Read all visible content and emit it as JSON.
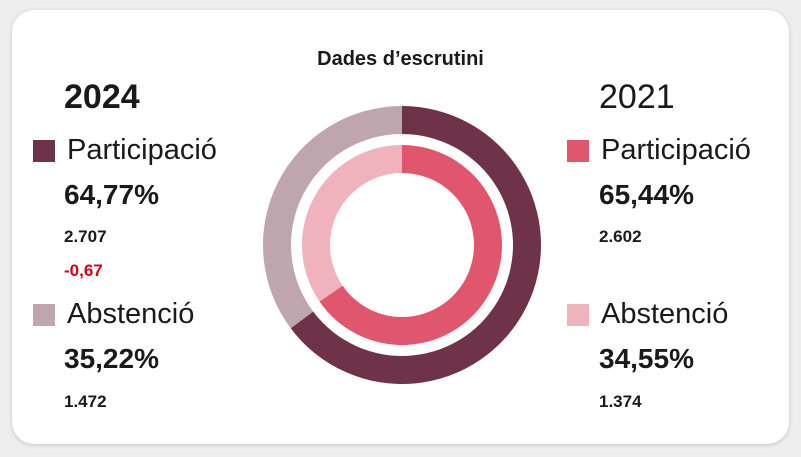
{
  "chart_data": {
    "type": "pie",
    "title": "Dades d’escrutini",
    "groups": [
      {
        "year": "2024",
        "ring": "outer",
        "slices": [
          {
            "label": "Participació",
            "value": 64.77,
            "value_text": "64,77%",
            "count": "2.707",
            "diff": "-0,67",
            "color": "#6e3249"
          },
          {
            "label": "Abstenció",
            "value": 35.22,
            "value_text": "35,22%",
            "count": "1.472",
            "color": "#bfa5ae"
          }
        ]
      },
      {
        "year": "2021",
        "ring": "inner",
        "slices": [
          {
            "label": "Participació",
            "value": 65.44,
            "value_text": "65,44%",
            "count": "2.602",
            "color": "#e0566d"
          },
          {
            "label": "Abstenció",
            "value": 34.55,
            "value_text": "34,55%",
            "count": "1.374",
            "color": "#f0b2bc"
          }
        ]
      }
    ],
    "diff_color": "#d0021b"
  }
}
